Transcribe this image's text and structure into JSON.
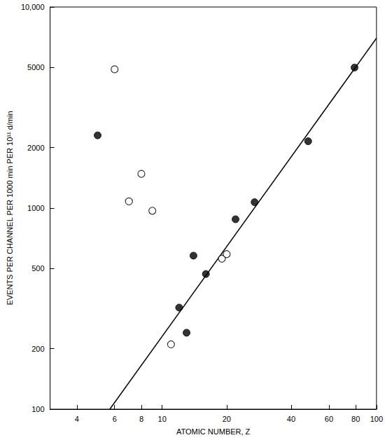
{
  "chart_data": {
    "type": "scatter",
    "xlabel": "ATOMIC NUMBER, Z",
    "ylabel": "EVENTS PER CHANNEL PER 1000 min PER 10¹¹ d/min",
    "log": true,
    "grid": false,
    "xlim": [
      3,
      100
    ],
    "xticks": [
      4,
      6,
      8,
      10,
      20,
      40,
      60,
      80,
      100
    ],
    "ylim": [
      100,
      10000
    ],
    "yticks": [
      100,
      200,
      500,
      1000,
      2000,
      5000,
      {
        "value": 10000,
        "label": "10,000"
      }
    ],
    "series": [
      {
        "type": "scatter",
        "marker": "filled",
        "color": "#000000",
        "x": [
          5,
          12,
          13,
          14,
          16,
          22,
          27,
          48,
          79
        ],
        "values": [
          2300,
          320,
          240,
          580,
          470,
          880,
          1070,
          2150,
          5000
        ]
      },
      {
        "type": "scatter",
        "marker": "open",
        "color": "#000000",
        "x": [
          6,
          7,
          8,
          9,
          11,
          19,
          20
        ],
        "values": [
          4900,
          1080,
          1480,
          970,
          210,
          560,
          590
        ]
      },
      {
        "type": "line",
        "line_style": "solid",
        "color": "#000000",
        "x": [
          5.7,
          100
        ],
        "values": [
          100,
          7000
        ]
      }
    ]
  }
}
